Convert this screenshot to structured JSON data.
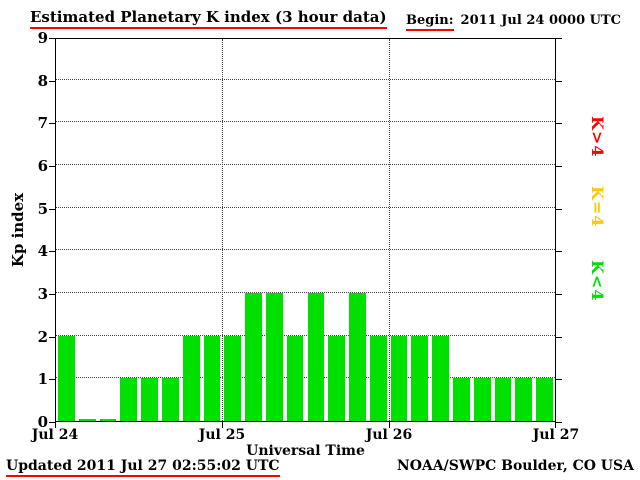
{
  "header": {
    "title": "Estimated Planetary K index (3 hour data)",
    "begin_label": "Begin:",
    "begin_value": "2011 Jul 24 0000 UTC"
  },
  "footer": {
    "updated": "Updated 2011 Jul 27 02:55:02 UTC",
    "source": "NOAA/SWPC Boulder, CO USA"
  },
  "legend": [
    {
      "label": "K>4",
      "color": "#ff0000"
    },
    {
      "label": "K=4",
      "color": "#ffc800"
    },
    {
      "label": "K<4",
      "color": "#00e000"
    }
  ],
  "chart_data": {
    "type": "bar",
    "title": "Estimated Planetary K index (3 hour data)",
    "xlabel": "Universal Time",
    "ylabel": "Kp index",
    "ylim": [
      0,
      9
    ],
    "y_ticks": [
      0,
      1,
      2,
      3,
      4,
      5,
      6,
      7,
      8,
      9
    ],
    "x_ticks": [
      "Jul 24",
      "Jul 25",
      "Jul 26",
      "Jul 27"
    ],
    "begin": "2011 Jul 24 0000 UTC",
    "bar_interval_hours": 3,
    "values": [
      2,
      0,
      0,
      1,
      1,
      1,
      2,
      2,
      2,
      3,
      3,
      2,
      3,
      2,
      3,
      2,
      2,
      2,
      2,
      1,
      1,
      1,
      1,
      1
    ],
    "bar_color_rules": {
      "lt4": "#00e000",
      "eq4": "#ffc800",
      "gt4": "#ff0000"
    },
    "grid": "dotted horizontal lines at 1-8, dotted vertical lines at day boundaries",
    "legend_position": "right, rotated vertical"
  }
}
